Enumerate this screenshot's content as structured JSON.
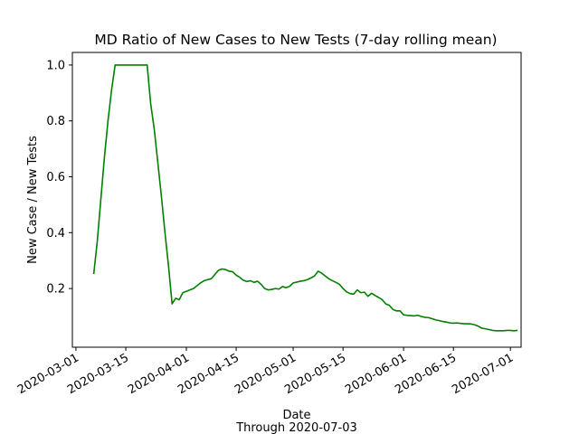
{
  "chart_data": {
    "type": "line",
    "title": "MD Ratio of New Cases to New Tests (7-day rolling mean)",
    "xlabel": "Date",
    "xlabel_sub": "Through 2020-07-03",
    "ylabel": "New Case / New Tests",
    "xlim": [
      "2020-02-29",
      "2020-07-04"
    ],
    "ylim": [
      -0.01,
      1.045
    ],
    "x_ticks": [
      "2020-03-01",
      "2020-03-15",
      "2020-04-01",
      "2020-04-15",
      "2020-05-01",
      "2020-05-15",
      "2020-06-01",
      "2020-06-15",
      "2020-07-01"
    ],
    "y_ticks": [
      0.2,
      0.4,
      0.6,
      0.8,
      1.0
    ],
    "y_tick_labels": [
      "0.2",
      "0.4",
      "0.6",
      "0.8",
      "1.0"
    ],
    "grid": false,
    "legend": "none",
    "series": [
      {
        "color": "#008000",
        "points": [
          [
            "2020-03-06",
            0.252
          ],
          [
            "2020-03-07",
            0.37
          ],
          [
            "2020-03-08",
            0.52
          ],
          [
            "2020-03-09",
            0.67
          ],
          [
            "2020-03-10",
            0.8
          ],
          [
            "2020-03-11",
            0.91
          ],
          [
            "2020-03-12",
            1.0
          ],
          [
            "2020-03-21",
            1.0
          ],
          [
            "2020-03-22",
            0.86
          ],
          [
            "2020-03-23",
            0.77
          ],
          [
            "2020-03-24",
            0.65
          ],
          [
            "2020-03-25",
            0.53
          ],
          [
            "2020-03-26",
            0.4
          ],
          [
            "2020-03-27",
            0.28
          ],
          [
            "2020-03-28",
            0.145
          ],
          [
            "2020-03-29",
            0.165
          ],
          [
            "2020-03-30",
            0.16
          ],
          [
            "2020-03-31",
            0.185
          ],
          [
            "2020-04-01",
            0.19
          ],
          [
            "2020-04-02",
            0.195
          ],
          [
            "2020-04-03",
            0.2
          ],
          [
            "2020-04-04",
            0.21
          ],
          [
            "2020-04-05",
            0.22
          ],
          [
            "2020-04-06",
            0.228
          ],
          [
            "2020-04-07",
            0.232
          ],
          [
            "2020-04-08",
            0.235
          ],
          [
            "2020-04-09",
            0.25
          ],
          [
            "2020-04-10",
            0.265
          ],
          [
            "2020-04-11",
            0.27
          ],
          [
            "2020-04-12",
            0.268
          ],
          [
            "2020-04-13",
            0.262
          ],
          [
            "2020-04-14",
            0.26
          ],
          [
            "2020-04-15",
            0.248
          ],
          [
            "2020-04-16",
            0.24
          ],
          [
            "2020-04-17",
            0.23
          ],
          [
            "2020-04-18",
            0.225
          ],
          [
            "2020-04-19",
            0.228
          ],
          [
            "2020-04-20",
            0.222
          ],
          [
            "2020-04-21",
            0.226
          ],
          [
            "2020-04-22",
            0.215
          ],
          [
            "2020-04-23",
            0.2
          ],
          [
            "2020-04-24",
            0.195
          ],
          [
            "2020-04-25",
            0.197
          ],
          [
            "2020-04-26",
            0.2
          ],
          [
            "2020-04-27",
            0.198
          ],
          [
            "2020-04-28",
            0.207
          ],
          [
            "2020-04-29",
            0.203
          ],
          [
            "2020-04-30",
            0.208
          ],
          [
            "2020-05-01",
            0.22
          ],
          [
            "2020-05-02",
            0.223
          ],
          [
            "2020-05-03",
            0.226
          ],
          [
            "2020-05-04",
            0.228
          ],
          [
            "2020-05-05",
            0.232
          ],
          [
            "2020-05-06",
            0.238
          ],
          [
            "2020-05-07",
            0.245
          ],
          [
            "2020-05-08",
            0.262
          ],
          [
            "2020-05-09",
            0.255
          ],
          [
            "2020-05-10",
            0.245
          ],
          [
            "2020-05-11",
            0.235
          ],
          [
            "2020-05-12",
            0.228
          ],
          [
            "2020-05-13",
            0.222
          ],
          [
            "2020-05-14",
            0.215
          ],
          [
            "2020-05-15",
            0.2
          ],
          [
            "2020-05-16",
            0.188
          ],
          [
            "2020-05-17",
            0.182
          ],
          [
            "2020-05-18",
            0.18
          ],
          [
            "2020-05-19",
            0.195
          ],
          [
            "2020-05-20",
            0.185
          ],
          [
            "2020-05-21",
            0.187
          ],
          [
            "2020-05-22",
            0.172
          ],
          [
            "2020-05-23",
            0.183
          ],
          [
            "2020-05-24",
            0.175
          ],
          [
            "2020-05-25",
            0.168
          ],
          [
            "2020-05-26",
            0.16
          ],
          [
            "2020-05-27",
            0.145
          ],
          [
            "2020-05-28",
            0.14
          ],
          [
            "2020-05-29",
            0.125
          ],
          [
            "2020-05-30",
            0.12
          ],
          [
            "2020-05-31",
            0.12
          ],
          [
            "2020-06-01",
            0.106
          ],
          [
            "2020-06-02",
            0.104
          ],
          [
            "2020-06-03",
            0.103
          ],
          [
            "2020-06-04",
            0.102
          ],
          [
            "2020-06-05",
            0.104
          ],
          [
            "2020-06-06",
            0.1
          ],
          [
            "2020-06-07",
            0.097
          ],
          [
            "2020-06-08",
            0.096
          ],
          [
            "2020-06-09",
            0.092
          ],
          [
            "2020-06-10",
            0.088
          ],
          [
            "2020-06-11",
            0.085
          ],
          [
            "2020-06-12",
            0.082
          ],
          [
            "2020-06-13",
            0.08
          ],
          [
            "2020-06-14",
            0.077
          ],
          [
            "2020-06-15",
            0.076
          ],
          [
            "2020-06-16",
            0.077
          ],
          [
            "2020-06-17",
            0.075
          ],
          [
            "2020-06-18",
            0.074
          ],
          [
            "2020-06-19",
            0.074
          ],
          [
            "2020-06-20",
            0.073
          ],
          [
            "2020-06-21",
            0.07
          ],
          [
            "2020-06-22",
            0.065
          ],
          [
            "2020-06-23",
            0.058
          ],
          [
            "2020-06-24",
            0.056
          ],
          [
            "2020-06-25",
            0.053
          ],
          [
            "2020-06-26",
            0.05
          ],
          [
            "2020-06-27",
            0.049
          ],
          [
            "2020-06-28",
            0.049
          ],
          [
            "2020-06-29",
            0.049
          ],
          [
            "2020-06-30",
            0.05
          ],
          [
            "2020-07-01",
            0.05
          ],
          [
            "2020-07-02",
            0.049
          ],
          [
            "2020-07-03",
            0.05
          ]
        ]
      }
    ]
  }
}
